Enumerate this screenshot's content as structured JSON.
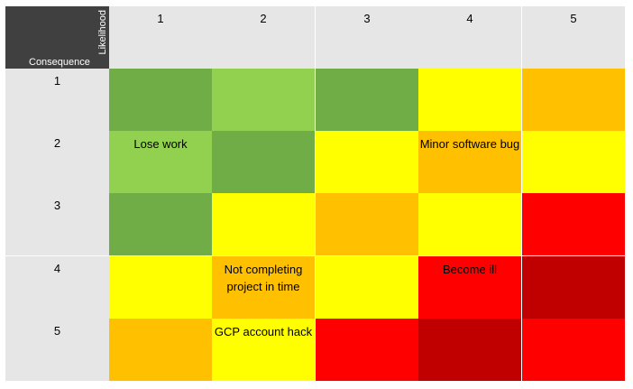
{
  "axis_labels": {
    "rows": "Consequence",
    "columns": "Likelihood"
  },
  "likelihood_levels": [
    "1",
    "2",
    "3",
    "4",
    "5"
  ],
  "consequence_levels": [
    "1",
    "2",
    "3",
    "4",
    "5"
  ],
  "palette": {
    "dark_green": "#70ad47",
    "light_green": "#92d050",
    "yellow": "#ffff00",
    "orange": "#ffc000",
    "red": "#ff0000",
    "dark_red": "#c00000"
  },
  "grid": [
    [
      {
        "color": "dark_green",
        "text": ""
      },
      {
        "color": "light_green",
        "text": ""
      },
      {
        "color": "dark_green",
        "text": ""
      },
      {
        "color": "yellow",
        "text": ""
      },
      {
        "color": "orange",
        "text": ""
      }
    ],
    [
      {
        "color": "light_green",
        "text": "Lose work"
      },
      {
        "color": "dark_green",
        "text": ""
      },
      {
        "color": "yellow",
        "text": ""
      },
      {
        "color": "orange",
        "text": "Minor software bug"
      },
      {
        "color": "yellow",
        "text": ""
      }
    ],
    [
      {
        "color": "dark_green",
        "text": ""
      },
      {
        "color": "yellow",
        "text": ""
      },
      {
        "color": "orange",
        "text": ""
      },
      {
        "color": "yellow",
        "text": ""
      },
      {
        "color": "red",
        "text": ""
      }
    ],
    [
      {
        "color": "yellow",
        "text": ""
      },
      {
        "color": "orange",
        "text": "Not completing project in time"
      },
      {
        "color": "yellow",
        "text": ""
      },
      {
        "color": "red",
        "text": "Become ill"
      },
      {
        "color": "dark_red",
        "text": ""
      }
    ],
    [
      {
        "color": "orange",
        "text": ""
      },
      {
        "color": "yellow",
        "text": "GCP account hack"
      },
      {
        "color": "red",
        "text": ""
      },
      {
        "color": "dark_red",
        "text": ""
      },
      {
        "color": "red",
        "text": ""
      }
    ]
  ]
}
